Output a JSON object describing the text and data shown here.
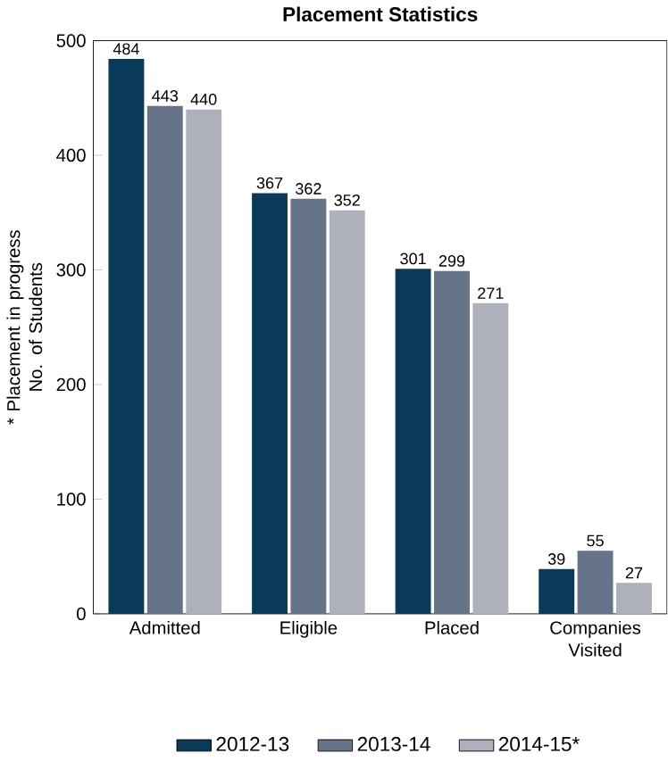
{
  "chart_data": {
    "type": "bar",
    "title": "Placement Statistics",
    "ylabel": "* Placement in progress\nNo. of Students",
    "categories": [
      "Admitted",
      "Eligible",
      "Placed",
      "Companies Visited"
    ],
    "series": [
      {
        "name": "2012-13",
        "color": "#0a3a58",
        "values": [
          484,
          367,
          301,
          39
        ]
      },
      {
        "name": "2013-14",
        "color": "#667388",
        "values": [
          443,
          362,
          299,
          55
        ]
      },
      {
        "name": "2014-15*",
        "color": "#aeb0bc",
        "values": [
          440,
          352,
          271,
          27
        ]
      }
    ],
    "ylim": [
      0,
      500
    ],
    "yticks": [
      0,
      100,
      200,
      300,
      400,
      500
    ],
    "data_labels": true,
    "legend": "bottom"
  }
}
